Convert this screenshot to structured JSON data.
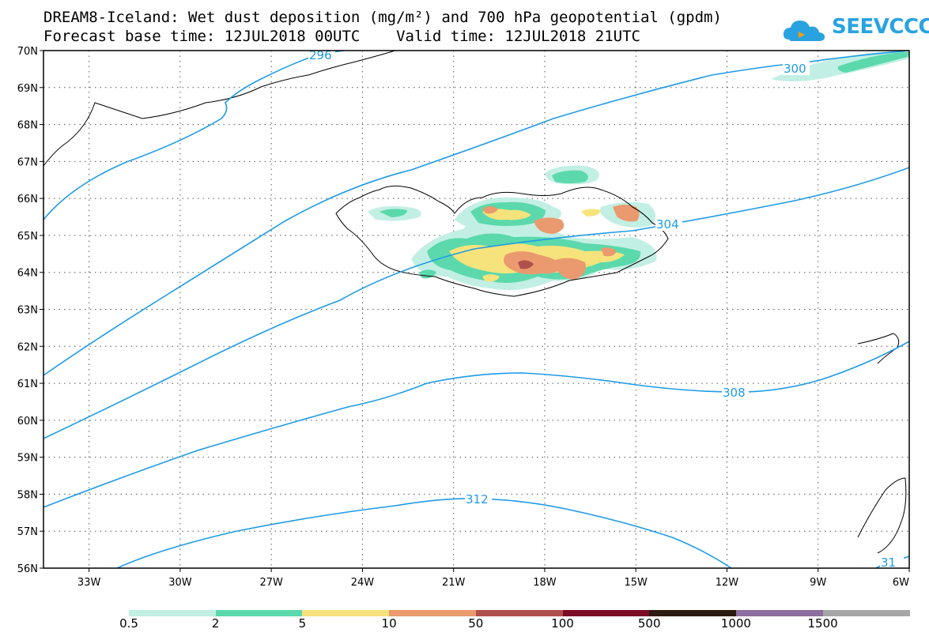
{
  "title": {
    "line1": "DREAM8-Iceland: Wet dust deposition (mg/m²) and 700 hPa geopotential (gpdm)",
    "line2": "Forecast base time: 12JUL2018 00UTC    Valid time: 12JUL2018 21UTC"
  },
  "logo": {
    "text": "SEEVCCC",
    "icon": "cloud-icon",
    "color": "#29a3e0"
  },
  "map": {
    "lat_labels": [
      "70N",
      "69N",
      "68N",
      "67N",
      "66N",
      "65N",
      "64N",
      "63N",
      "62N",
      "61N",
      "60N",
      "59N",
      "58N",
      "57N",
      "56N"
    ],
    "lon_labels": [
      "33W",
      "30W",
      "27W",
      "24W",
      "21W",
      "18W",
      "15W",
      "12W",
      "9W",
      "6W"
    ],
    "extent": {
      "lon_min": -34.5,
      "lon_max": -6,
      "lat_min": 56,
      "lat_max": 70
    },
    "contour_color": "#1e9be6",
    "contours": [
      {
        "value": "296",
        "label": "296"
      },
      {
        "value": "300",
        "label": "300"
      },
      {
        "value": "304",
        "label": "304"
      },
      {
        "value": "308",
        "label": "308"
      },
      {
        "value": "312",
        "label": "312"
      },
      {
        "value": "31",
        "label": "31"
      }
    ]
  },
  "colorbar": {
    "labels": [
      "0.5",
      "2",
      "5",
      "10",
      "50",
      "100",
      "500",
      "1000",
      "1500"
    ],
    "colors": [
      "#c2efe4",
      "#5bd9ac",
      "#f7e37c",
      "#ea9a6e",
      "#b0504d",
      "#7c0b25",
      "#2b1a0e",
      "#8d6e9f",
      "#a6a6a6"
    ]
  }
}
